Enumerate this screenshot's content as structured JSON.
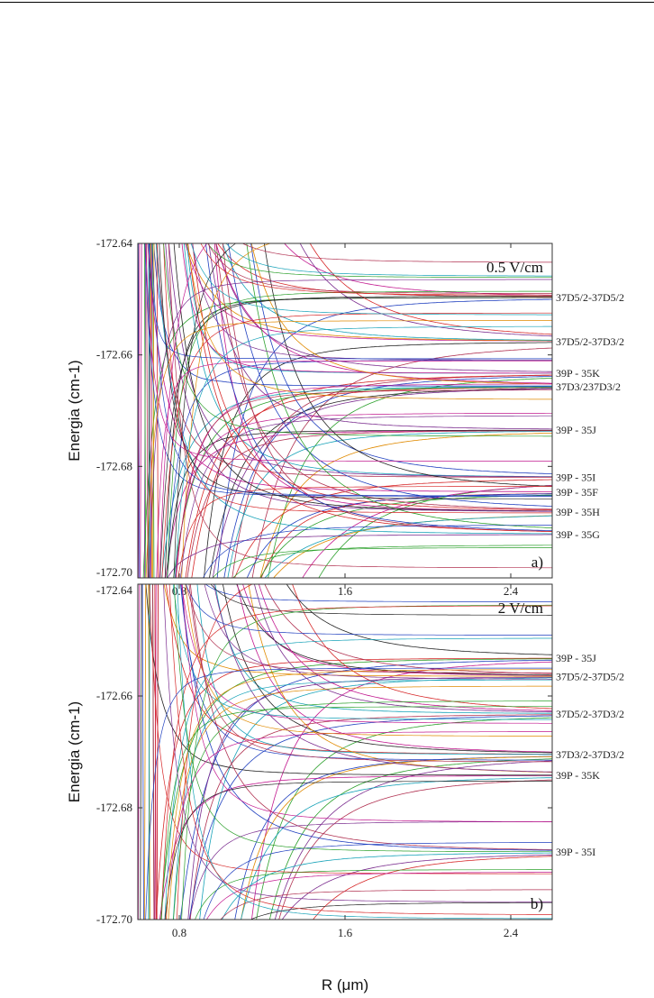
{
  "chart_data": [
    {
      "type": "line",
      "field_label": "0.5 V/cm",
      "panel_label": "a)",
      "ylabel": "Energia (cm-1)",
      "xlabel": "",
      "xlim": [
        0.6,
        2.6
      ],
      "ylim": [
        -172.7,
        -172.64
      ],
      "xticks": [
        "0.8",
        "1.6",
        "2.4"
      ],
      "yticks": [
        "-172.64",
        "-172.66",
        "-172.68",
        "-172.70"
      ],
      "asymptotes": [
        {
          "label": "37D5/2-37D5/2",
          "energy": -172.6497
        },
        {
          "label": "37D5/2-37D3/2",
          "energy": -172.6576
        },
        {
          "label": "39P - 35K",
          "energy": -172.6633
        },
        {
          "label": "37D3/237D3/2",
          "energy": -172.6656
        },
        {
          "label": "39P - 35J",
          "energy": -172.6735
        },
        {
          "label": "39P - 35I",
          "energy": -172.682
        },
        {
          "label": "39P - 35F",
          "energy": -172.6846
        },
        {
          "label": "39P - 35H",
          "energy": -172.6882
        },
        {
          "label": "39P - 35G",
          "energy": -172.6922
        }
      ]
    },
    {
      "type": "line",
      "field_label": "2 V/cm",
      "panel_label": "b)",
      "ylabel": "Energia (cm-1)",
      "xlabel": "R (μm)",
      "xlim": [
        0.6,
        2.6
      ],
      "ylim": [
        -172.7,
        -172.64
      ],
      "xticks": [
        "0.8",
        "1.6",
        "2.4"
      ],
      "yticks": [
        "-172.64",
        "-172.66",
        "-172.68",
        "-172.70"
      ],
      "asymptotes": [
        {
          "label": "39P - 35J",
          "energy": -172.6532
        },
        {
          "label": "37D5/2-37D5/2",
          "energy": -172.6565
        },
        {
          "label": "37D5/2-37D3/2",
          "energy": -172.6632
        },
        {
          "label": "37D3/2-37D3/2",
          "energy": -172.6705
        },
        {
          "label": "39P - 35K",
          "energy": -172.6742
        },
        {
          "label": "39P - 35I",
          "energy": -172.6879
        }
      ]
    }
  ],
  "colors": [
    "#d62728",
    "#1f3fbf",
    "#2ca02c",
    "#c2188f",
    "#222222",
    "#e08a00",
    "#17a2b8",
    "#7b2d8f",
    "#b03050"
  ]
}
